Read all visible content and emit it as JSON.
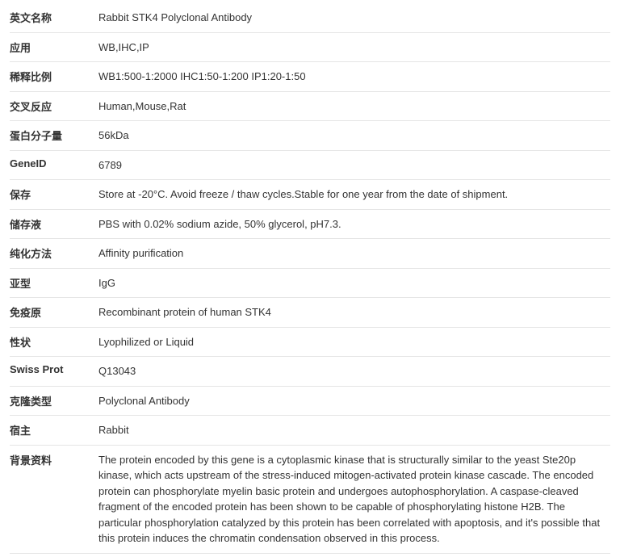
{
  "table": {
    "rows": [
      {
        "label": "英文名称",
        "value": "Rabbit STK4 Polyclonal Antibody"
      },
      {
        "label": "应用",
        "value": "WB,IHC,IP"
      },
      {
        "label": "稀释比例",
        "value": "WB1:500-1:2000 IHC1:50-1:200 IP1:20-1:50"
      },
      {
        "label": "交叉反应",
        "value": "Human,Mouse,Rat"
      },
      {
        "label": "蛋白分子量",
        "value": "56kDa"
      },
      {
        "label": "GeneID",
        "value": "6789"
      },
      {
        "label": "保存",
        "value": "Store at -20°C. Avoid freeze / thaw cycles.Stable for one year from the date of shipment."
      },
      {
        "label": "储存液",
        "value": "PBS with 0.02% sodium azide, 50% glycerol, pH7.3."
      },
      {
        "label": "纯化方法",
        "value": "Affinity purification"
      },
      {
        "label": "亚型",
        "value": "IgG"
      },
      {
        "label": "免疫原",
        "value": "Recombinant protein of human STK4"
      },
      {
        "label": "性状",
        "value": "Lyophilized or Liquid"
      },
      {
        "label": "Swiss Prot",
        "value": "Q13043"
      },
      {
        "label": "克隆类型",
        "value": "Polyclonal Antibody"
      },
      {
        "label": "宿主",
        "value": "Rabbit"
      },
      {
        "label": "背景资料",
        "value": "The protein encoded by this gene is a cytoplasmic kinase that is structurally similar to the yeast Ste20p kinase, which acts upstream of the stress-induced mitogen-activated protein kinase cascade. The encoded protein can phosphorylate myelin basic protein and undergoes autophosphorylation. A caspase-cleaved fragment of the encoded protein has been shown to be capable of phosphorylating histone H2B. The particular phosphorylation catalyzed by this protein has been correlated with apoptosis, and it's possible that this protein induces the chromatin condensation observed in this process."
      }
    ]
  }
}
